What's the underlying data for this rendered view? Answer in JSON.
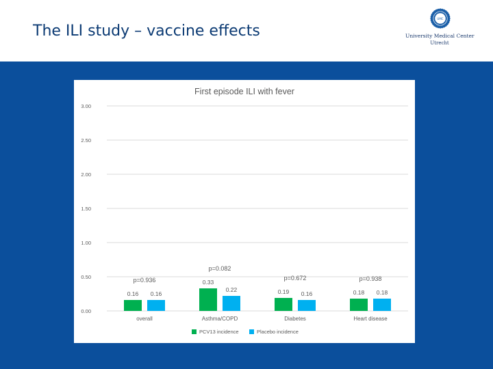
{
  "slide": {
    "title": "The ILI study – vaccine effects"
  },
  "logo": {
    "name": "University Medical Center",
    "city": "Utrecht",
    "mark_text": "UMC"
  },
  "colors": {
    "band": "#0b4f9c",
    "title": "#0b3a73",
    "series_pcv13": "#00b050",
    "series_placebo": "#00b0f0",
    "grid": "#d9d9d9",
    "axis_text": "#595959"
  },
  "chart_data": {
    "type": "bar",
    "title": "First episode ILI with fever",
    "categories": [
      "overall",
      "Asthma/COPD",
      "Diabetes",
      "Heart disease"
    ],
    "series": [
      {
        "name": "PCV13 incidence",
        "values": [
          0.16,
          0.33,
          0.19,
          0.18
        ],
        "labels": [
          "0.16",
          "0.33",
          "0.19",
          "0.18"
        ]
      },
      {
        "name": "Placebo incidence",
        "values": [
          0.16,
          0.22,
          0.16,
          0.18
        ],
        "labels": [
          "0.16",
          "0.22",
          "0.16",
          "0.18"
        ]
      }
    ],
    "annotations": [
      "p=0.936",
      "p=0.082",
      "p=0.672",
      "p=0.938"
    ],
    "ylim": [
      0,
      3
    ],
    "yticks": [
      "0.00",
      "0.50",
      "1.00",
      "1.50",
      "2.00",
      "2.50",
      "3.00"
    ],
    "xlabel": "",
    "ylabel": "",
    "legend": "bottom"
  }
}
